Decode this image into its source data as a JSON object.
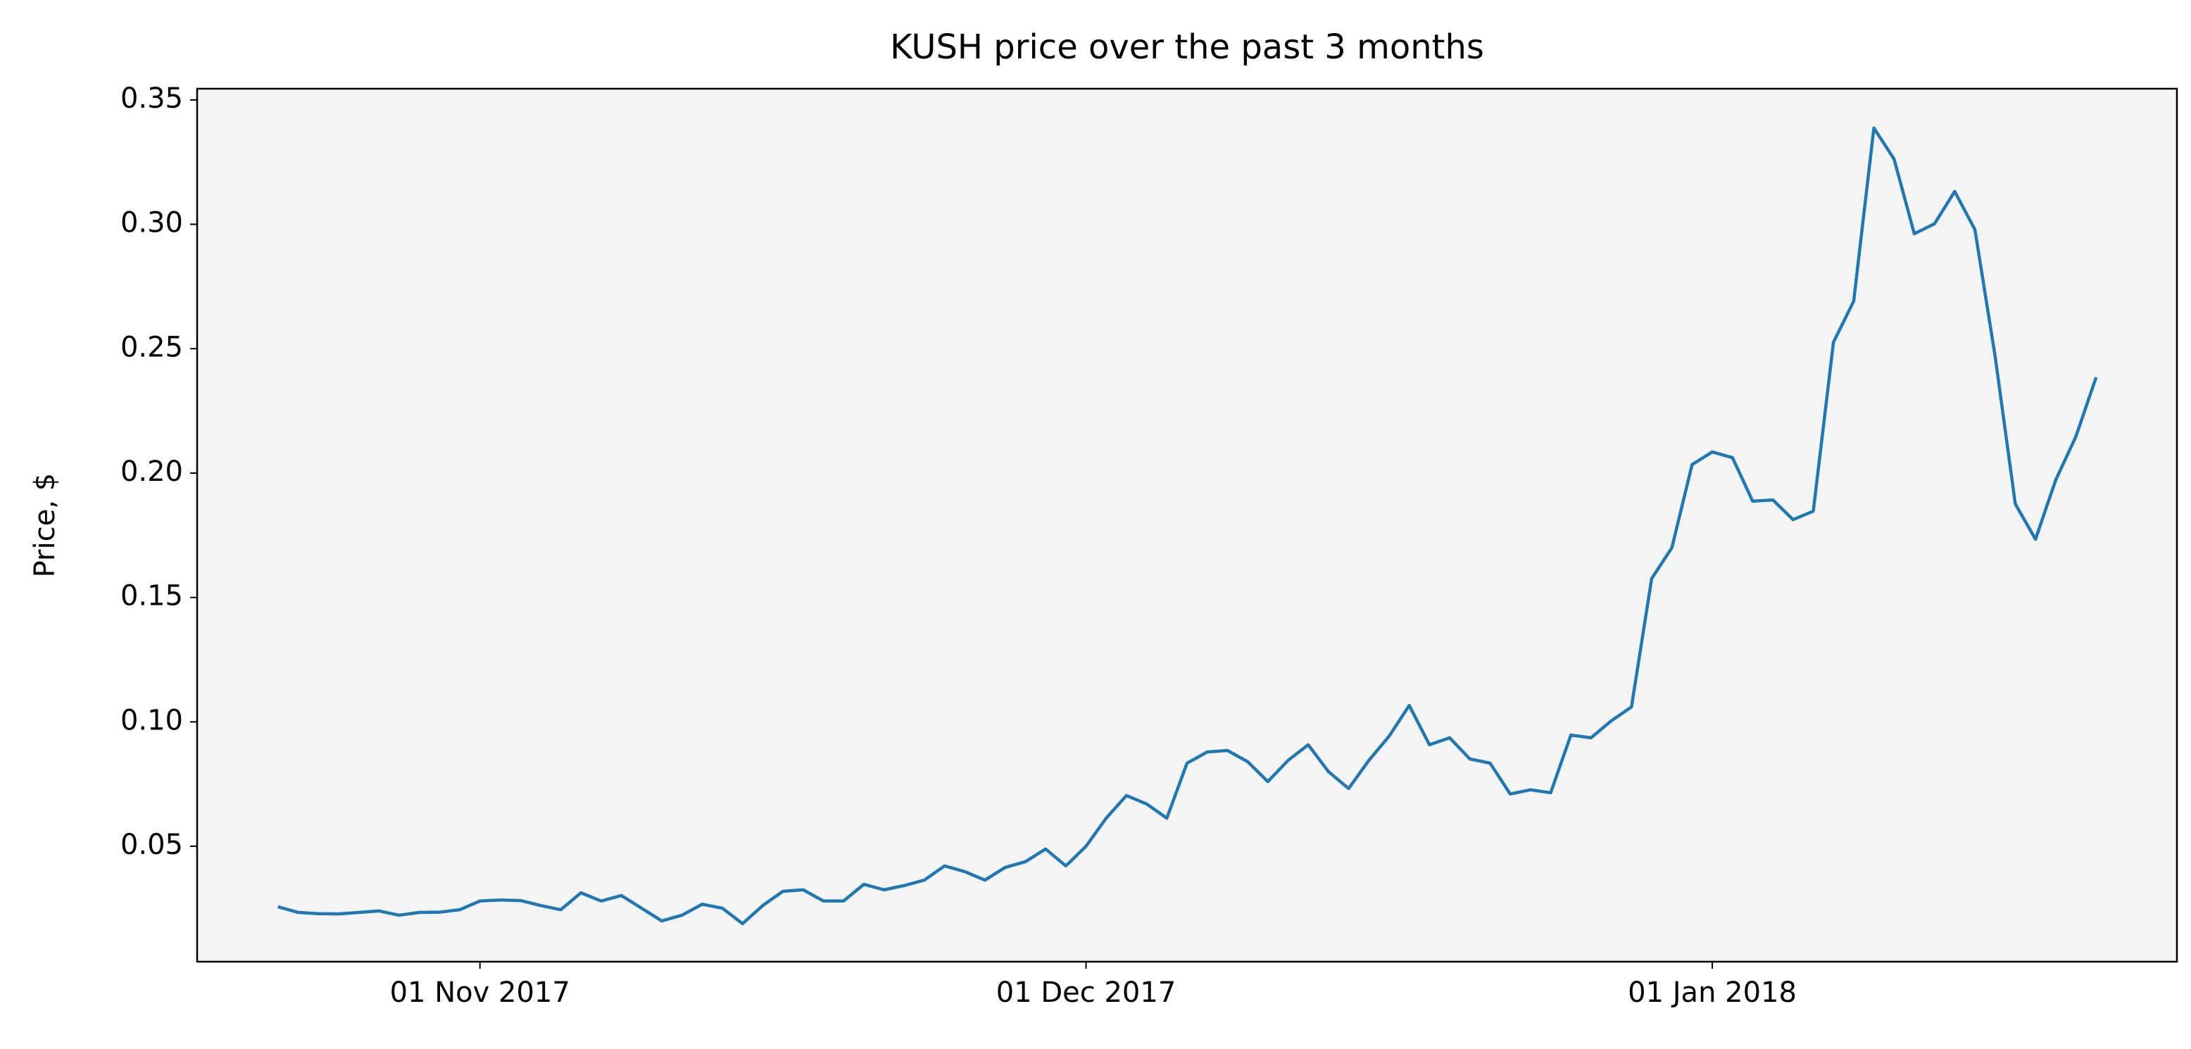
{
  "chart_data": {
    "type": "line",
    "title": "KUSH price over the past 3 months",
    "ylabel": "Price, $",
    "color": "#1f77b4",
    "x": [
      "2017-10-22",
      "2017-10-23",
      "2017-10-24",
      "2017-10-25",
      "2017-10-26",
      "2017-10-27",
      "2017-10-28",
      "2017-10-29",
      "2017-10-30",
      "2017-10-31",
      "2017-11-01",
      "2017-11-02",
      "2017-11-03",
      "2017-11-04",
      "2017-11-05",
      "2017-11-06",
      "2017-11-07",
      "2017-11-08",
      "2017-11-09",
      "2017-11-10",
      "2017-11-11",
      "2017-11-12",
      "2017-11-13",
      "2017-11-14",
      "2017-11-15",
      "2017-11-16",
      "2017-11-17",
      "2017-11-18",
      "2017-11-19",
      "2017-11-20",
      "2017-11-21",
      "2017-11-22",
      "2017-11-23",
      "2017-11-24",
      "2017-11-25",
      "2017-11-26",
      "2017-11-27",
      "2017-11-28",
      "2017-11-29",
      "2017-11-30",
      "2017-12-01",
      "2017-12-02",
      "2017-12-03",
      "2017-12-04",
      "2017-12-05",
      "2017-12-06",
      "2017-12-07",
      "2017-12-08",
      "2017-12-09",
      "2017-12-10",
      "2017-12-11",
      "2017-12-12",
      "2017-12-13",
      "2017-12-14",
      "2017-12-15",
      "2017-12-16",
      "2017-12-17",
      "2017-12-18",
      "2017-12-19",
      "2017-12-20",
      "2017-12-21",
      "2017-12-22",
      "2017-12-23",
      "2017-12-24",
      "2017-12-25",
      "2017-12-26",
      "2017-12-27",
      "2017-12-28",
      "2017-12-29",
      "2017-12-30",
      "2017-12-31",
      "2018-01-01",
      "2018-01-02",
      "2018-01-03",
      "2018-01-04",
      "2018-01-05",
      "2018-01-06",
      "2018-01-07",
      "2018-01-08",
      "2018-01-09",
      "2018-01-10",
      "2018-01-11",
      "2018-01-12",
      "2018-01-13",
      "2018-01-14",
      "2018-01-15",
      "2018-01-16",
      "2018-01-17",
      "2018-01-18",
      "2018-01-19",
      "2018-01-20"
    ],
    "values": [
      0.0257,
      0.0234,
      0.0229,
      0.0228,
      0.0234,
      0.024,
      0.0223,
      0.0234,
      0.0235,
      0.0245,
      0.028,
      0.0284,
      0.0282,
      0.0262,
      0.0245,
      0.0313,
      0.028,
      0.0302,
      0.0251,
      0.02,
      0.0223,
      0.0267,
      0.0251,
      0.0189,
      0.0262,
      0.0319,
      0.0325,
      0.028,
      0.028,
      0.0347,
      0.0325,
      0.0342,
      0.0364,
      0.0421,
      0.0398,
      0.0364,
      0.0415,
      0.0438,
      0.0489,
      0.0421,
      0.05,
      0.0613,
      0.0704,
      0.067,
      0.0613,
      0.0834,
      0.0879,
      0.0885,
      0.084,
      0.076,
      0.0845,
      0.0908,
      0.08,
      0.0732,
      0.0845,
      0.0942,
      0.1066,
      0.0908,
      0.0936,
      0.0851,
      0.0834,
      0.071,
      0.0727,
      0.0715,
      0.0947,
      0.0936,
      0.1004,
      0.106,
      0.1576,
      0.17,
      0.2034,
      0.2085,
      0.2062,
      0.1887,
      0.1892,
      0.1813,
      0.1847,
      0.2526,
      0.2691,
      0.3387,
      0.3262,
      0.2962,
      0.3002,
      0.3132,
      0.2979,
      0.247,
      0.1876,
      0.1734,
      0.1972,
      0.2147,
      0.2385
    ],
    "xlim": [
      "2017-10-18",
      "2018-01-24"
    ],
    "xticks": [
      {
        "value": "2017-11-01",
        "label": "01 Nov 2017"
      },
      {
        "value": "2017-12-01",
        "label": "01 Dec 2017"
      },
      {
        "value": "2018-01-01",
        "label": "01 Jan 2018"
      }
    ],
    "ylim": [
      0.0036,
      0.3545
    ],
    "yticks": [
      0.05,
      {
        "value": 0.1,
        "label": "0.10"
      },
      0.15,
      {
        "value": 0.2,
        "label": "0.20"
      },
      0.25,
      {
        "value": 0.3,
        "label": "0.30"
      },
      0.35
    ],
    "grid": false
  }
}
